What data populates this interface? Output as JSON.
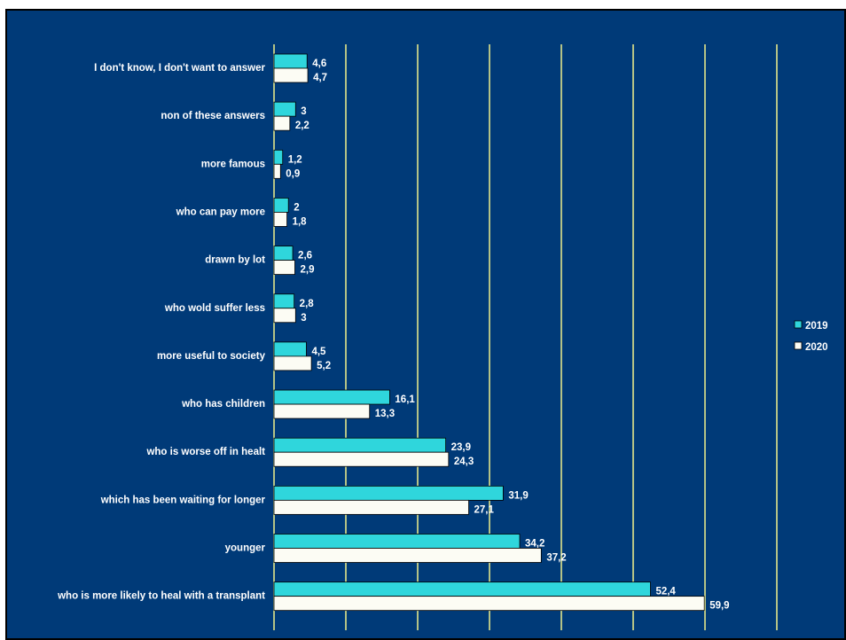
{
  "chart_data": {
    "type": "bar",
    "orientation": "horizontal",
    "categories": [
      "I don't know, I don't want to answer",
      "non of these answers",
      "more famous",
      "who can pay more",
      "drawn by lot",
      "who wold suffer less",
      "more useful to society",
      "who has children",
      "who is worse off in healt",
      "which has been waiting for longer",
      "younger",
      "who is more likely to heal with a transplant"
    ],
    "series": [
      {
        "name": "2019",
        "color": "#2fd6dc",
        "values": [
          4.6,
          3,
          1.2,
          2,
          2.6,
          2.8,
          4.5,
          16.1,
          23.9,
          31.9,
          34.2,
          52.4
        ],
        "labels": [
          "4,6",
          "3",
          "1,2",
          "2",
          "2,6",
          "2,8",
          "4,5",
          "16,1",
          "23,9",
          "31,9",
          "34,2",
          "52,4"
        ]
      },
      {
        "name": "2020",
        "color": "#fcfcf4",
        "values": [
          4.7,
          2.2,
          0.9,
          1.8,
          2.9,
          3,
          5.2,
          13.3,
          24.3,
          27.1,
          37.2,
          59.9
        ],
        "labels": [
          "4,7",
          "2,2",
          "0,9",
          "1,8",
          "2,9",
          "3",
          "5,2",
          "13,3",
          "24,3",
          "27,1",
          "37,2",
          "59,9"
        ]
      }
    ],
    "xlim": [
      0,
      70
    ],
    "grid": "vertical",
    "grid_color": "#f0f08a",
    "background": "#003a78",
    "legend_position": "right",
    "title": "",
    "xlabel": "",
    "ylabel": ""
  }
}
